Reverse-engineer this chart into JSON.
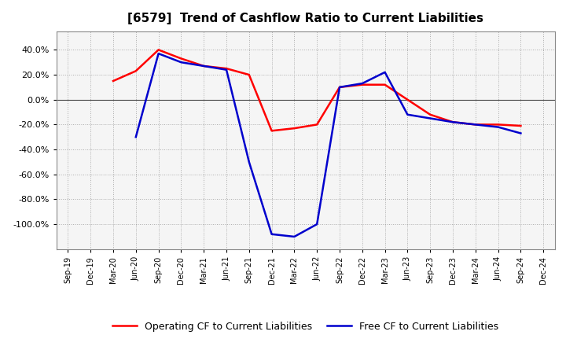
{
  "title": "[6579]  Trend of Cashflow Ratio to Current Liabilities",
  "x_labels": [
    "Sep-19",
    "Dec-19",
    "Mar-20",
    "Jun-20",
    "Sep-20",
    "Dec-20",
    "Mar-21",
    "Jun-21",
    "Sep-21",
    "Dec-21",
    "Mar-22",
    "Jun-22",
    "Sep-22",
    "Dec-22",
    "Mar-23",
    "Jun-23",
    "Sep-23",
    "Dec-23",
    "Mar-24",
    "Jun-24",
    "Sep-24",
    "Dec-24"
  ],
  "operating_cf_x": [
    2,
    3,
    4,
    5,
    6,
    7,
    8,
    9,
    10,
    11,
    12,
    13,
    14,
    15,
    16,
    17,
    18,
    19,
    20
  ],
  "operating_cf_y": [
    15.0,
    23.0,
    40.0,
    33.0,
    27.0,
    25.0,
    20.0,
    -25.0,
    -23.0,
    -20.0,
    10.0,
    12.0,
    12.0,
    0.0,
    -12.0,
    -18.0,
    -20.0,
    -20.0,
    -21.0
  ],
  "free_cf_x": [
    3,
    4,
    5,
    6,
    7,
    8,
    9,
    10,
    11,
    12,
    13,
    14,
    15,
    16,
    17,
    18,
    19,
    20
  ],
  "free_cf_y": [
    -30.0,
    37.0,
    30.0,
    27.0,
    24.0,
    -50.0,
    -108.0,
    -110.0,
    -100.0,
    10.0,
    13.0,
    22.0,
    -12.0,
    -15.0,
    -18.0,
    -20.0,
    -22.0,
    -27.0
  ],
  "operating_cf_color": "#FF0000",
  "free_cf_color": "#0000CD",
  "ylim": [
    -120.0,
    55.0
  ],
  "yticks": [
    -100.0,
    -80.0,
    -60.0,
    -40.0,
    -20.0,
    0.0,
    20.0,
    40.0
  ],
  "background_color": "#FFFFFF",
  "plot_bg_color": "#F5F5F5",
  "grid_color": "#999999",
  "legend_labels": [
    "Operating CF to Current Liabilities",
    "Free CF to Current Liabilities"
  ],
  "line_width": 1.8
}
